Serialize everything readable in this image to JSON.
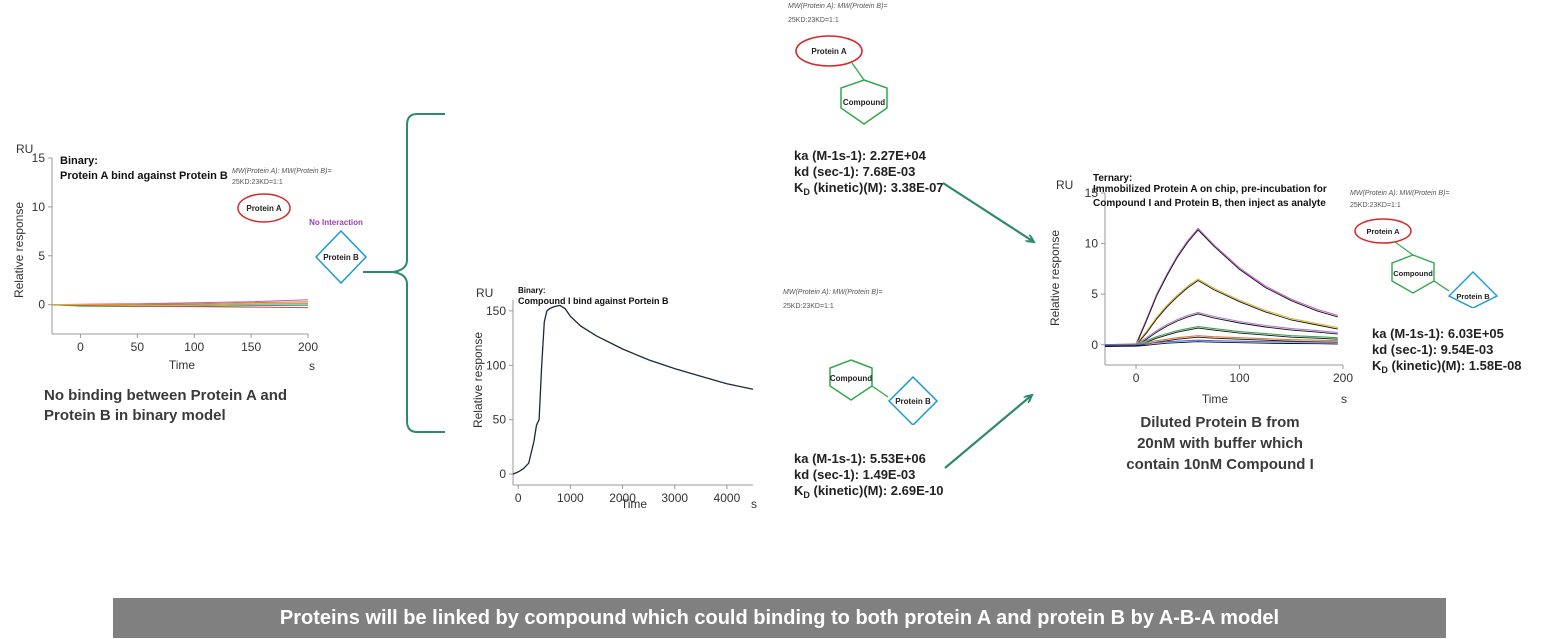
{
  "chart_data": [
    {
      "type": "line",
      "title": "Binary:",
      "subtitle": "Protein A bind against Protein B",
      "unit_label": "RU",
      "xlabel": "Time",
      "x_unit": "s",
      "ylabel": "Relative response",
      "xlim": [
        -25,
        200
      ],
      "ylim": [
        -3,
        15
      ],
      "x_ticks": [
        0,
        50,
        100,
        150,
        200
      ],
      "y_ticks": [
        0,
        5,
        10,
        15
      ],
      "series": [
        {
          "color": "#c45ccb",
          "x": [
            -25,
            0,
            50,
            100,
            150,
            200
          ],
          "y": [
            0,
            0.05,
            0.1,
            0.2,
            0.3,
            0.5
          ]
        },
        {
          "color": "#e07a3a",
          "x": [
            -25,
            0,
            50,
            100,
            150,
            200
          ],
          "y": [
            0,
            0,
            0.05,
            0.1,
            0.2,
            0.3
          ]
        },
        {
          "color": "#4a6fd6",
          "x": [
            -25,
            0,
            50,
            100,
            150,
            200
          ],
          "y": [
            0,
            -0.1,
            -0.05,
            0,
            0.05,
            0.1
          ]
        },
        {
          "color": "#3ba35a",
          "x": [
            -25,
            0,
            50,
            100,
            150,
            200
          ],
          "y": [
            0,
            -0.15,
            -0.2,
            -0.15,
            -0.1,
            -0.05
          ]
        },
        {
          "color": "#d14a4a",
          "x": [
            -25,
            0,
            50,
            100,
            150,
            200
          ],
          "y": [
            0,
            -0.05,
            -0.15,
            -0.2,
            -0.25,
            -0.3
          ]
        },
        {
          "color": "#d9b52c",
          "x": [
            -25,
            0,
            50,
            100,
            150,
            200
          ],
          "y": [
            0,
            0.02,
            -0.1,
            -0.05,
            0.1,
            0.15
          ]
        }
      ]
    },
    {
      "type": "line",
      "title": "Binary:",
      "subtitle": "Compound I bind against Portein B",
      "unit_label": "RU",
      "xlabel": "Time",
      "x_unit": "s",
      "ylabel": "Relative response",
      "xlim": [
        -100,
        4500
      ],
      "ylim": [
        -10,
        160
      ],
      "x_ticks": [
        0,
        1000,
        2000,
        3000,
        4000
      ],
      "y_ticks": [
        0,
        50,
        100,
        150
      ],
      "series": [
        {
          "color": "#1a2a3a",
          "x": [
            -100,
            0,
            100,
            200,
            300,
            350,
            400,
            450,
            500,
            550,
            600,
            700,
            800,
            900,
            1000,
            1200,
            1500,
            2000,
            2500,
            3000,
            3500,
            4000,
            4500
          ],
          "y": [
            0,
            2,
            5,
            10,
            30,
            45,
            50,
            100,
            140,
            150,
            152,
            154,
            155,
            152,
            145,
            136,
            127,
            115,
            105,
            97,
            90,
            83,
            78
          ]
        }
      ]
    },
    {
      "type": "line",
      "title": "Ternary:",
      "subtitle": "Immobilized Protein A on chip, pre-incubation for Compound I and Protein B, then inject as analyte",
      "unit_label": "RU",
      "xlabel": "Time",
      "x_unit": "s",
      "ylabel": "Relative response",
      "xlim": [
        -30,
        200
      ],
      "ylim": [
        -2,
        15
      ],
      "x_ticks": [
        0,
        100,
        200
      ],
      "y_ticks": [
        0,
        5,
        10,
        15
      ],
      "series": [
        {
          "color": "#c45ccb",
          "x": [
            -30,
            0,
            10,
            20,
            30,
            40,
            50,
            60,
            75,
            100,
            125,
            150,
            175,
            195
          ],
          "y": [
            0,
            0.1,
            2.5,
            5.0,
            7.0,
            8.8,
            10.3,
            11.5,
            9.9,
            7.6,
            5.8,
            4.5,
            3.5,
            2.9
          ]
        },
        {
          "color": "#d9b52c",
          "x": [
            -30,
            0,
            10,
            20,
            30,
            40,
            50,
            60,
            75,
            100,
            125,
            150,
            175,
            195
          ],
          "y": [
            0,
            0.1,
            1.3,
            2.7,
            3.9,
            4.9,
            5.8,
            6.5,
            5.6,
            4.4,
            3.4,
            2.6,
            2.1,
            1.7
          ]
        },
        {
          "color": "#b07ad0",
          "x": [
            -30,
            0,
            10,
            20,
            30,
            40,
            50,
            60,
            75,
            100,
            125,
            150,
            175,
            195
          ],
          "y": [
            0,
            0.05,
            0.7,
            1.4,
            2.0,
            2.5,
            2.9,
            3.2,
            2.8,
            2.3,
            1.9,
            1.6,
            1.4,
            1.2
          ]
        },
        {
          "color": "#3ba35a",
          "x": [
            -30,
            0,
            10,
            20,
            30,
            40,
            50,
            60,
            75,
            100,
            125,
            150,
            175,
            195
          ],
          "y": [
            0,
            0.05,
            0.4,
            0.8,
            1.1,
            1.4,
            1.6,
            1.8,
            1.6,
            1.3,
            1.1,
            0.9,
            0.8,
            0.7
          ]
        },
        {
          "color": "#e07a3a",
          "x": [
            -30,
            0,
            10,
            20,
            30,
            40,
            50,
            60,
            75,
            100,
            125,
            150,
            175,
            195
          ],
          "y": [
            0,
            0.02,
            0.2,
            0.4,
            0.55,
            0.7,
            0.8,
            0.9,
            0.8,
            0.7,
            0.6,
            0.5,
            0.45,
            0.4
          ]
        },
        {
          "color": "#4a6fd6",
          "x": [
            -30,
            0,
            10,
            20,
            30,
            40,
            50,
            60,
            75,
            100,
            125,
            150,
            175,
            195
          ],
          "y": [
            0,
            0.01,
            0.1,
            0.2,
            0.3,
            0.35,
            0.4,
            0.45,
            0.4,
            0.35,
            0.3,
            0.27,
            0.25,
            0.22
          ]
        }
      ]
    }
  ],
  "panel1": {
    "mw_label": "MW(Protein A): MW(Protein B)=",
    "ratio_label": "25KD:23KD=1:1",
    "protein_a": "Protein A",
    "protein_b": "Protein B",
    "no_interaction": "No Interaction",
    "caption_line1": "No binding between Protein A and",
    "caption_line2": "Protein B in binary model"
  },
  "top_model": {
    "mw_label": "MW(Protein A): MW(Protein B)=",
    "ratio_label": "25KD:23KD=1:1",
    "protein_a": "Protein A",
    "compound": "Compound",
    "ka": "ka (M-1s-1): 2.27E+04",
    "kd": "kd (sec-1): 7.68E-03",
    "kd_kinetic_prefix": "K",
    "kd_kinetic_sub": "D",
    "kd_kinetic_rest": " (kinetic)(M): 3.38E-07"
  },
  "mid_model": {
    "mw_label": "MW(Protein A): MW(Protein B)=",
    "ratio_label": "25KD:23KD=1:1",
    "compound": "Compound",
    "protein_b": "Protein B",
    "ka": "ka (M-1s-1): 5.53E+06",
    "kd": "kd (sec-1): 1.49E-03",
    "kd_kinetic_prefix": "K",
    "kd_kinetic_sub": "D",
    "kd_kinetic_rest": " (kinetic)(M): 2.69E-10"
  },
  "ternary_model": {
    "mw_label": "MW(Protein A): MW(Protein B)=",
    "ratio_label": "25KD:23KD=1:1",
    "protein_a": "Protein A",
    "compound": "Compound",
    "protein_b": "Protein B",
    "ka": "ka (M-1s-1): 6.03E+05",
    "kd": "kd (sec-1): 9.54E-03",
    "kd_kinetic_prefix": "K",
    "kd_kinetic_sub": "D",
    "kd_kinetic_rest": " (kinetic)(M): 1.58E-08",
    "caption_line1": "Diluted Protein B from",
    "caption_line2": "20nM with buffer which",
    "caption_line3": "contain 10nM Compound I"
  },
  "banner": {
    "text": "Proteins will be linked by compound which could binding to both protein A and protein B by A-B-A model"
  },
  "colors": {
    "protein_a_outline": "#d42a2a",
    "compound_outline": "#2fa84a",
    "protein_b_outline": "#1a9ad6",
    "arrow": "#2e8b6a",
    "no_interaction": "#a040b0",
    "banner_bg": "#808080"
  }
}
